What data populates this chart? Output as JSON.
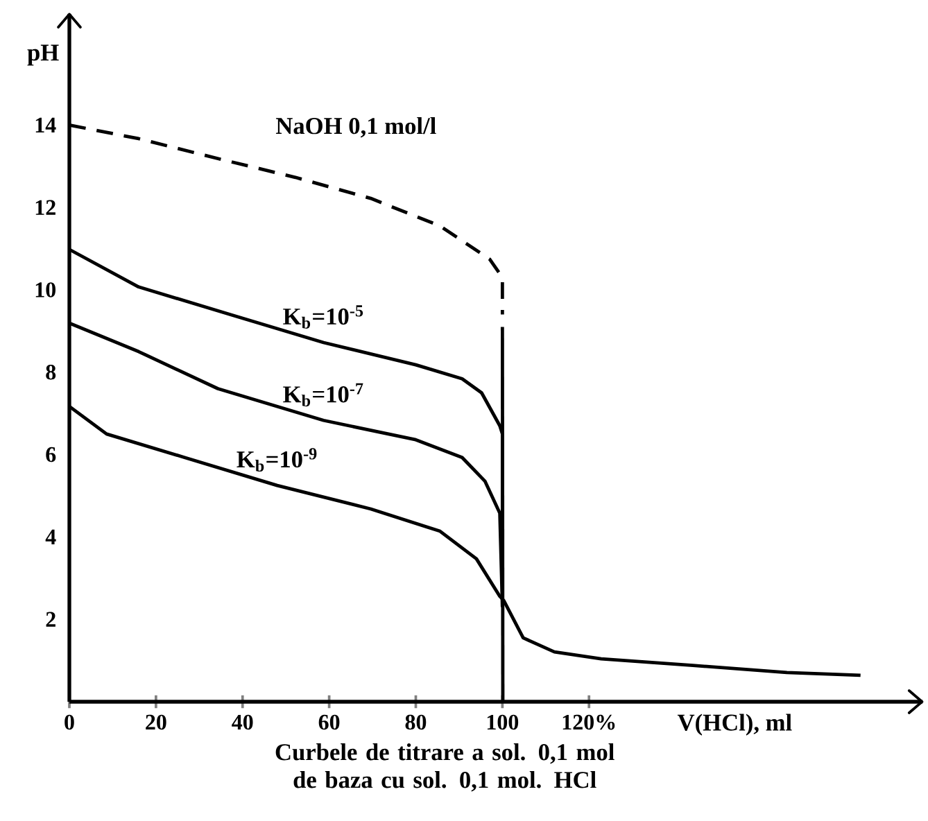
{
  "chart_data": {
    "type": "line",
    "xlabel": "V(HCl), ml",
    "ylabel": "pH",
    "annotations": [
      "Curbele de titrare a sol. 0,1 mol de baza  cu sol. 0,1 mol. HCl"
    ],
    "xlim": [
      0,
      197
    ],
    "ylim": [
      0,
      16.7
    ],
    "xticks": [
      0,
      20,
      40,
      60,
      80,
      100,
      {
        "value": 120,
        "label": "120%"
      }
    ],
    "yticks": [
      2,
      4,
      6,
      8,
      10,
      12,
      14
    ],
    "marker": "none",
    "series": [
      {
        "name": "NaOH 0,1 mol/l",
        "color": "#000000",
        "line_style": "dashed",
        "x": [
          0,
          16,
          35.3,
          52.2,
          69.6,
          85.6,
          97.1,
          100,
          100
        ],
        "values": [
          14,
          13.67,
          13.16,
          12.73,
          12.22,
          11.55,
          10.74,
          10.3,
          9.4
        ]
      },
      {
        "name": "K$_{b}$=10$^{-5}$",
        "color": "#000000",
        "line_style": "solid",
        "x": [
          0,
          16,
          37.5,
          58.7,
          80,
          90.7,
          95.2,
          99.4,
          100,
          100
        ],
        "values": [
          10.98,
          10.07,
          9.39,
          8.72,
          8.18,
          7.84,
          7.5,
          6.7,
          6.5,
          2.3
        ]
      },
      {
        "name": "K$_{b}$=10$^{-7}$",
        "color": "#000000",
        "line_style": "solid",
        "x": [
          0,
          16,
          34.3,
          58.7,
          80,
          90.7,
          96,
          99.4,
          100
        ],
        "values": [
          9.19,
          8.5,
          7.6,
          6.83,
          6.36,
          5.93,
          5.35,
          4.58,
          2.3
        ]
      },
      {
        "name": "K$_{b}$=10$^{-9}$",
        "color": "#000000",
        "line_style": "solid",
        "x": [
          0,
          8.6,
          26.6,
          48,
          69.6,
          85.6,
          94,
          99.4,
          100.3,
          104.8,
          112,
          122.8,
          144,
          165.7,
          182.7
        ],
        "values": [
          7.17,
          6.5,
          5.93,
          5.25,
          4.68,
          4.14,
          3.47,
          2.56,
          2.46,
          1.55,
          1.21,
          1.04,
          0.88,
          0.71,
          0.64
        ]
      },
      {
        "color": "#000000",
        "line_style": "solid",
        "x": [
          100,
          100.1
        ],
        "values": [
          9.1,
          0
        ]
      }
    ]
  }
}
